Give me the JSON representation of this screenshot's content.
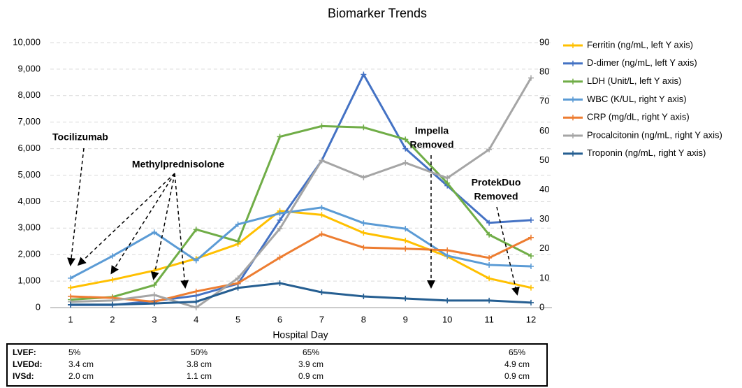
{
  "chart_data": {
    "type": "line",
    "title": "Biomarker Trends",
    "xlabel": "Hospital Day",
    "categories": [
      "1",
      "2",
      "3",
      "4",
      "5",
      "6",
      "7",
      "8",
      "9",
      "10",
      "11",
      "12"
    ],
    "ylim": [
      0,
      10000
    ],
    "yticks": [
      0,
      {
        "value": 1000,
        "label": "1,000"
      },
      {
        "value": 2000,
        "label": "2,000"
      },
      {
        "value": 3000,
        "label": "3,000"
      },
      {
        "value": 4000,
        "label": "4,000"
      },
      {
        "value": 5000,
        "label": "5,000"
      },
      {
        "value": 6000,
        "label": "6,000"
      },
      {
        "value": 7000,
        "label": "7,000"
      },
      {
        "value": 8000,
        "label": "8,000"
      },
      {
        "value": 9000,
        "label": "9,000"
      },
      {
        "value": 10000,
        "label": "10,000"
      }
    ],
    "y2lim": [
      0,
      90
    ],
    "y2ticks": [
      0,
      10,
      20,
      30,
      40,
      50,
      60,
      70,
      80,
      90
    ],
    "grid": true,
    "legend": "right",
    "series": [
      {
        "name": "Ferritin (ng/mL, left Y axis)",
        "color": "#ffc000",
        "values": [
          750,
          1050,
          1400,
          1850,
          2400,
          3650,
          3500,
          2820,
          2530,
          1930,
          1100,
          750
        ]
      },
      {
        "name": "D-dimer (ng/mL, left Y axis)",
        "color": "#4472c4",
        "values": [
          100,
          100,
          250,
          450,
          900,
          3300,
          5550,
          8800,
          6000,
          4600,
          3200,
          3300
        ]
      },
      {
        "name": "LDH (Unit/L, left Y axis)",
        "color": "#70ad47",
        "values": [
          300,
          400,
          850,
          2950,
          2500,
          6450,
          6850,
          6800,
          6350,
          4700,
          2750,
          1950
        ]
      },
      {
        "name": "WBC (K/UL, right Y axis)",
        "color": "#5b9bd5",
        "axis": "y2",
        "values": [
          10,
          17.5,
          25.6,
          16,
          28.3,
          32,
          34,
          28.7,
          26.8,
          17.6,
          14.5,
          14
        ]
      },
      {
        "name": "CRP (mg/dL, right Y axis)",
        "color": "#ed7d31",
        "axis": "y2",
        "values": [
          3.8,
          3.3,
          2,
          5.5,
          8.3,
          17,
          25,
          20.4,
          20,
          19.5,
          16.9,
          23.8
        ]
      },
      {
        "name": "Procalcitonin (ng/mL, right Y axis)",
        "color": "#a5a5a5",
        "axis": "y2",
        "values": [
          2,
          2.4,
          4.3,
          0,
          10,
          26.8,
          50,
          44.2,
          49.2,
          44,
          53.7,
          78
        ]
      },
      {
        "name": "Troponin (ng/mL, right Y axis)",
        "color": "#255e91",
        "axis": "y2",
        "values": [
          1,
          1,
          1.4,
          2,
          6.7,
          8.3,
          5.2,
          3.8,
          3.1,
          2.4,
          2.4,
          1.7
        ]
      }
    ],
    "annotations": [
      {
        "lines": [
          "Tocilizumab"
        ]
      },
      {
        "lines": [
          "Methylprednisolone"
        ]
      },
      {
        "lines": [
          "Impella",
          "Removed"
        ]
      },
      {
        "lines": [
          "ProtekDuo",
          "Removed"
        ]
      }
    ]
  },
  "table": {
    "rows": [
      [
        "LVEF:",
        "5%",
        "50%",
        "65%",
        "65%"
      ],
      [
        "LVEDd:",
        "3.4 cm",
        "3.8 cm",
        "3.9 cm",
        "4.9 cm"
      ],
      [
        "IVSd:",
        "2.0 cm",
        "1.1 cm",
        "0.9 cm",
        "0.9 cm"
      ]
    ]
  }
}
